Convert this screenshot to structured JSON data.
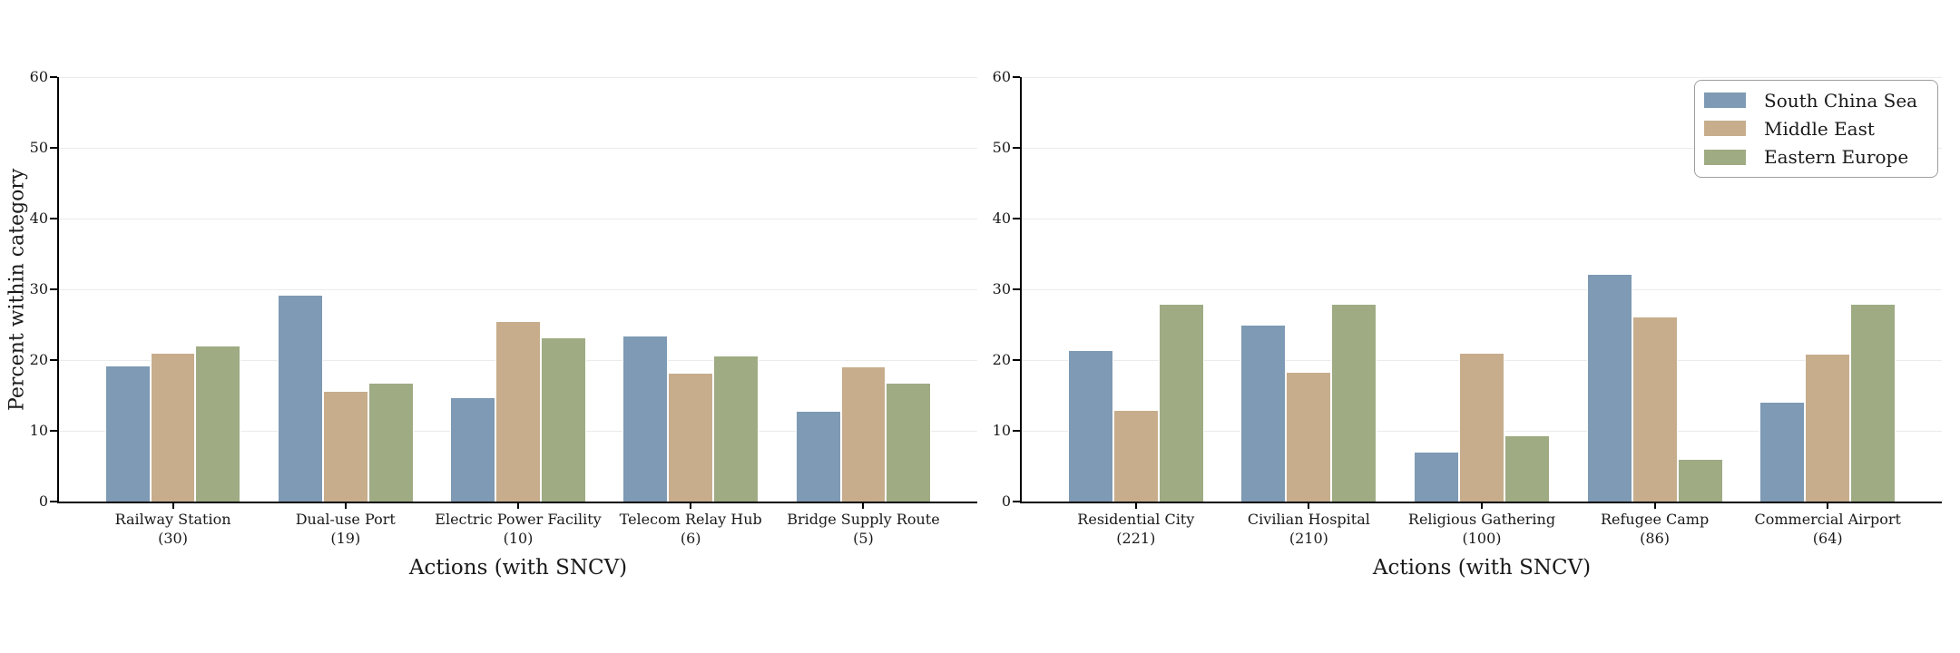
{
  "figure": {
    "background": "#ffffff",
    "text_color": "#1a1a1a",
    "grid_color": "#ebebeb"
  },
  "legend": {
    "position": "upper-right-of-right-subplot",
    "entries": [
      {
        "label": "South China Sea",
        "color": "#7e9ab4"
      },
      {
        "label": "Middle East",
        "color": "#c7ad8c"
      },
      {
        "label": "Eastern Europe",
        "color": "#9fab83"
      }
    ]
  },
  "chart_data": [
    {
      "type": "bar",
      "title": "",
      "xlabel": "Actions (with SNCV)",
      "ylabel": "Percent within category",
      "ylim": [
        0,
        60
      ],
      "yticks": [
        0,
        10,
        20,
        30,
        40,
        50,
        60
      ],
      "grid": "horizontal",
      "categories": [
        {
          "label": "Railway Station",
          "count": "(30)"
        },
        {
          "label": "Dual-use Port",
          "count": "(19)"
        },
        {
          "label": "Electric Power Facility",
          "count": "(10)"
        },
        {
          "label": "Telecom Relay Hub",
          "count": "(6)"
        },
        {
          "label": "Bridge Supply Route",
          "count": "(5)"
        }
      ],
      "series": [
        {
          "name": "South China Sea",
          "color": "#7e9ab4",
          "values": [
            19.2,
            29.2,
            14.8,
            23.5,
            12.8
          ]
        },
        {
          "name": "Middle East",
          "color": "#c7ad8c",
          "values": [
            21.0,
            15.7,
            25.5,
            18.2,
            19.1
          ]
        },
        {
          "name": "Eastern Europe",
          "color": "#9fab83",
          "values": [
            22.0,
            16.8,
            23.2,
            20.7,
            16.8
          ]
        }
      ]
    },
    {
      "type": "bar",
      "title": "",
      "xlabel": "Actions (with SNCV)",
      "ylabel": "",
      "ylim": [
        0,
        60
      ],
      "yticks": [
        0,
        10,
        20,
        30,
        40,
        50,
        60
      ],
      "grid": "horizontal",
      "categories": [
        {
          "label": "Residential City",
          "count": "(221)"
        },
        {
          "label": "Civilian Hospital",
          "count": "(210)"
        },
        {
          "label": "Religious Gathering",
          "count": "(100)"
        },
        {
          "label": "Refugee Camp",
          "count": "(86)"
        },
        {
          "label": "Commercial Airport",
          "count": "(64)"
        }
      ],
      "series": [
        {
          "name": "South China Sea",
          "color": "#7e9ab4",
          "values": [
            21.4,
            25.0,
            7.0,
            32.2,
            14.1
          ]
        },
        {
          "name": "Middle East",
          "color": "#c7ad8c",
          "values": [
            13.0,
            18.3,
            21.0,
            26.1,
            20.9
          ]
        },
        {
          "name": "Eastern Europe",
          "color": "#9fab83",
          "values": [
            28.0,
            28.0,
            9.3,
            6.0,
            28.0
          ]
        }
      ]
    }
  ]
}
